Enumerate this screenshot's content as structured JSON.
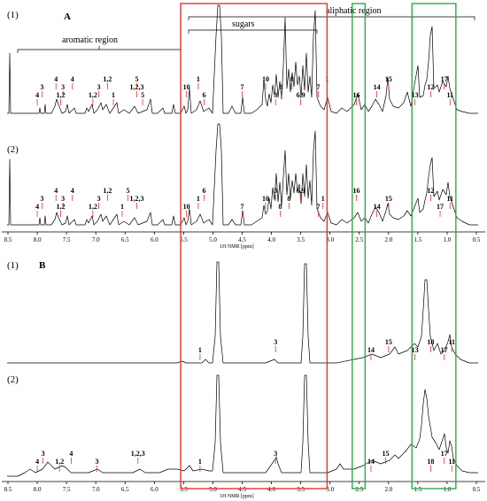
{
  "chart_data": [
    {
      "type": "line",
      "panel": "A",
      "spectra": [
        "(1)",
        "(2)"
      ],
      "xlabel": "1H NMR [ppm]",
      "xlim": [
        8.5,
        0.5
      ],
      "x_ticks": [
        "8.5",
        "8.0",
        "7.5",
        "7.0",
        "6.5",
        "6.0",
        "5.5",
        "5.0",
        "4.5",
        "4.0",
        "3.5",
        "3.0",
        "2.5",
        "2.0",
        "1.5",
        "1.0",
        "0.5"
      ],
      "regions": [
        {
          "label": "aromatic region",
          "from_ppm": 8.4,
          "to_ppm": 5.5
        },
        {
          "label": "sugars",
          "from_ppm": 5.5,
          "to_ppm": 3.1
        },
        {
          "label": "aliphatic region",
          "from_ppm": 5.5,
          "to_ppm": 0.6
        }
      ],
      "spectrum_1_labels": [
        {
          "text": "4",
          "ppm": 8.0
        },
        {
          "text": "3",
          "ppm": 7.92
        },
        {
          "text": "4",
          "ppm": 7.68
        },
        {
          "text": "1,2",
          "ppm": 7.6
        },
        {
          "text": "3",
          "ppm": 7.56
        },
        {
          "text": "4",
          "ppm": 7.4
        },
        {
          "text": "1,2",
          "ppm": 7.05
        },
        {
          "text": "3",
          "ppm": 6.95
        },
        {
          "text": "1,2",
          "ppm": 6.8
        },
        {
          "text": "1",
          "ppm": 6.7
        },
        {
          "text": "1,2,3",
          "ppm": 6.3
        },
        {
          "text": "5",
          "ppm": 6.3
        },
        {
          "text": "5",
          "ppm": 6.2
        },
        {
          "text": "10",
          "ppm": 5.45
        },
        {
          "text": "1",
          "ppm": 5.25
        },
        {
          "text": "6",
          "ppm": 5.15
        },
        {
          "text": "7",
          "ppm": 4.5
        },
        {
          "text": "10",
          "ppm": 4.1
        },
        {
          "text": "3",
          "ppm": 3.93
        },
        {
          "text": "8",
          "ppm": 3.83
        },
        {
          "text": "8",
          "ppm": 3.65
        },
        {
          "text": "6,9",
          "ppm": 3.5
        },
        {
          "text": "7",
          "ppm": 3.2
        },
        {
          "text": "1",
          "ppm": 3.05
        },
        {
          "text": "16",
          "ppm": 2.55
        },
        {
          "text": "14",
          "ppm": 2.2
        },
        {
          "text": "15",
          "ppm": 2.0
        },
        {
          "text": "13",
          "ppm": 1.55
        },
        {
          "text": "12",
          "ppm": 1.28
        },
        {
          "text": "17",
          "ppm": 1.05
        },
        {
          "text": "11",
          "ppm": 0.95
        }
      ],
      "spectrum_2_labels": [
        {
          "text": "4",
          "ppm": 8.0
        },
        {
          "text": "3",
          "ppm": 7.92
        },
        {
          "text": "4",
          "ppm": 7.68
        },
        {
          "text": "1,2",
          "ppm": 7.6
        },
        {
          "text": "3",
          "ppm": 7.56
        },
        {
          "text": "4",
          "ppm": 7.4
        },
        {
          "text": "1,2",
          "ppm": 7.05
        },
        {
          "text": "3",
          "ppm": 6.95
        },
        {
          "text": "1,2",
          "ppm": 6.8
        },
        {
          "text": "1",
          "ppm": 6.55
        },
        {
          "text": "1,2,3",
          "ppm": 6.3
        },
        {
          "text": "5",
          "ppm": 6.45
        },
        {
          "text": "10",
          "ppm": 5.45
        },
        {
          "text": "1",
          "ppm": 5.25
        },
        {
          "text": "6",
          "ppm": 5.15
        },
        {
          "text": "7",
          "ppm": 4.5
        },
        {
          "text": "10",
          "ppm": 4.1
        },
        {
          "text": "3",
          "ppm": 3.93
        },
        {
          "text": "8",
          "ppm": 3.85
        },
        {
          "text": "8",
          "ppm": 3.7
        },
        {
          "text": "6,9",
          "ppm": 3.5
        },
        {
          "text": "7",
          "ppm": 3.2
        },
        {
          "text": "1",
          "ppm": 3.12
        },
        {
          "text": "16",
          "ppm": 2.55
        },
        {
          "text": "14",
          "ppm": 2.2
        },
        {
          "text": "15",
          "ppm": 2.0
        },
        {
          "text": "12",
          "ppm": 1.28
        },
        {
          "text": "17",
          "ppm": 1.12
        },
        {
          "text": "11",
          "ppm": 0.95
        }
      ]
    },
    {
      "type": "line",
      "panel": "B",
      "spectra": [
        "(1)",
        "(2)"
      ],
      "xlabel": "1H NMR [ppm]",
      "xlim": [
        8.5,
        0.5
      ],
      "x_ticks": [
        "8.5",
        "8.0",
        "7.5",
        "7.0",
        "6.5",
        "6.0",
        "5.5",
        "5.0",
        "4.5",
        "4.0",
        "3.5",
        "3.0",
        "2.5",
        "2.0",
        "1.5",
        "1.0",
        "0.5"
      ],
      "spectrum_1_labels": [
        {
          "text": "1",
          "ppm": 5.22
        },
        {
          "text": "3",
          "ppm": 3.93
        },
        {
          "text": "14",
          "ppm": 2.3
        },
        {
          "text": "15",
          "ppm": 2.0
        },
        {
          "text": "13",
          "ppm": 1.55
        },
        {
          "text": "18",
          "ppm": 1.28
        },
        {
          "text": "17",
          "ppm": 1.05
        },
        {
          "text": "11",
          "ppm": 0.92
        }
      ],
      "spectrum_2_labels": [
        {
          "text": "4",
          "ppm": 8.0
        },
        {
          "text": "3",
          "ppm": 7.9
        },
        {
          "text": "1,2",
          "ppm": 7.62
        },
        {
          "text": "4",
          "ppm": 7.42
        },
        {
          "text": "3",
          "ppm": 6.98
        },
        {
          "text": "1,2,3",
          "ppm": 6.28
        },
        {
          "text": "1",
          "ppm": 5.22
        },
        {
          "text": "3",
          "ppm": 3.93
        },
        {
          "text": "14",
          "ppm": 2.3
        },
        {
          "text": "15",
          "ppm": 2.05
        },
        {
          "text": "18",
          "ppm": 1.28
        },
        {
          "text": "17",
          "ppm": 1.05
        },
        {
          "text": "11",
          "ppm": 0.92
        }
      ]
    }
  ],
  "highlight_boxes": [
    {
      "color": "#e8312f",
      "from_ppm": 5.55,
      "to_ppm": 3.05
    },
    {
      "color": "#2ea84a",
      "from_ppm": 2.62,
      "to_ppm": 2.4
    },
    {
      "color": "#2ea84a",
      "from_ppm": 1.6,
      "to_ppm": 0.85
    }
  ],
  "colors": {
    "red_box": "#e8312f",
    "green_box": "#2ea84a",
    "pointer": "#e8312f",
    "trace": "#000000"
  }
}
